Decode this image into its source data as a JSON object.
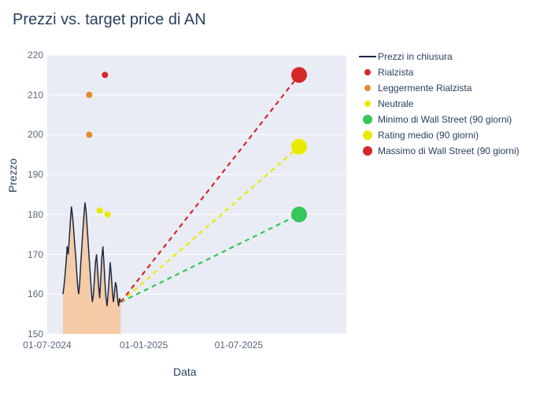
{
  "title": "Prezzi vs. target price di AN",
  "xlabel": "Data",
  "ylabel": "Prezzo",
  "background_color": "#ffffff",
  "plot_bg_color": "#e9ecf4",
  "grid_color": "#ffffff",
  "title_color": "#2a3f5f",
  "axis_text_color": "#566680",
  "title_fontsize": 20,
  "label_fontsize": 14,
  "tick_fontsize": 12,
  "legend_fontsize": 12,
  "ylim": [
    150,
    220
  ],
  "yticks": [
    150,
    160,
    170,
    180,
    190,
    200,
    210,
    220
  ],
  "x_range_days": 570,
  "x_origin_label": "01-07-2024",
  "xticks": [
    {
      "day": 0,
      "label": "01-07-2024"
    },
    {
      "day": 184,
      "label": "01-01-2025"
    },
    {
      "day": 365,
      "label": "01-07-2025"
    }
  ],
  "price_line": {
    "color": "#1e2a47",
    "width": 1.5,
    "area_fill": "#f7c59a",
    "area_opacity": 0.85,
    "start_day": 30,
    "step_days": 2,
    "last_day": 140,
    "last_value": 158,
    "values": [
      160,
      162,
      165,
      168,
      172,
      170,
      174,
      178,
      182,
      180,
      177,
      173,
      170,
      166,
      162,
      160,
      163,
      168,
      172,
      176,
      180,
      183,
      181,
      177,
      173,
      169,
      165,
      161,
      158,
      160,
      164,
      168,
      170,
      166,
      162,
      159,
      164,
      169,
      172,
      168,
      163,
      159,
      157,
      160,
      164,
      168,
      165,
      161,
      158,
      160,
      163,
      162,
      159,
      157,
      159,
      158
    ]
  },
  "analyst_points": [
    {
      "day": 80,
      "value": 200,
      "series": "moderate_buy"
    },
    {
      "day": 80,
      "value": 210,
      "series": "moderate_buy"
    },
    {
      "day": 100,
      "value": 181,
      "series": "neutral"
    },
    {
      "day": 115,
      "value": 180,
      "series": "neutral"
    },
    {
      "day": 110,
      "value": 215,
      "series": "bullish"
    }
  ],
  "targets": {
    "end_day": 480,
    "min": {
      "value": 180,
      "line_color": "#34c759",
      "marker_color": "#34c759"
    },
    "mean": {
      "value": 197,
      "line_color": "#eaea00",
      "marker_color": "#eaea00"
    },
    "max": {
      "value": 215,
      "line_color": "#d62728",
      "marker_color": "#d62728"
    },
    "marker_radius": 10,
    "line_width": 2.2,
    "dash": "6,5"
  },
  "series": {
    "close": {
      "label": "Prezzi in chiusura",
      "color": "#1e2a47",
      "type": "line"
    },
    "bullish": {
      "label": "Rialzista",
      "color": "#d62728",
      "marker_radius": 4
    },
    "moderate_buy": {
      "label": "Leggermente Rialzista",
      "color": "#e68a2e",
      "marker_radius": 4
    },
    "neutral": {
      "label": "Neutrale",
      "color": "#eaea00",
      "marker_radius": 4
    },
    "target_min": {
      "label": "Minimo di Wall Street (90 giorni)",
      "color": "#34c759",
      "marker_radius": 8
    },
    "target_mean": {
      "label": "Rating medio (90 giorni)",
      "color": "#eaea00",
      "marker_radius": 8
    },
    "target_max": {
      "label": "Massimo di Wall Street (90 giorni)",
      "color": "#d62728",
      "marker_radius": 8
    }
  },
  "legend_order": [
    "close",
    "bullish",
    "moderate_buy",
    "neutral",
    "target_min",
    "target_mean",
    "target_max"
  ]
}
